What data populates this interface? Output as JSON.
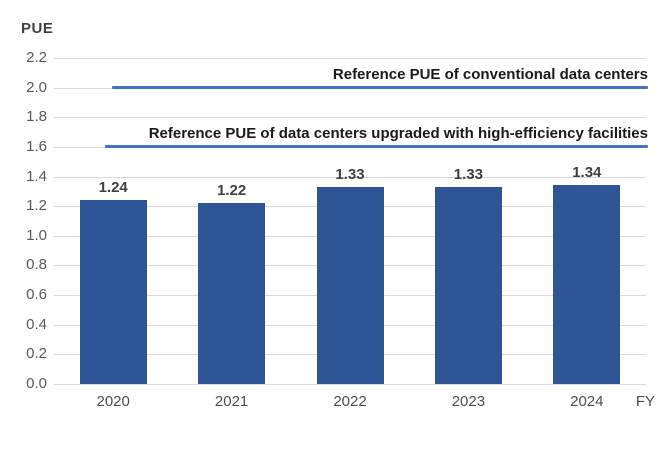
{
  "chart_data": {
    "type": "bar",
    "title": "",
    "ylabel": "PUE",
    "xlabel": "FY",
    "categories": [
      "2020",
      "2021",
      "2022",
      "2023",
      "2024"
    ],
    "values": [
      1.24,
      1.22,
      1.33,
      1.33,
      1.34
    ],
    "value_labels": [
      "1.24",
      "1.22",
      "1.33",
      "1.33",
      "1.34"
    ],
    "ylim": [
      0.0,
      2.2
    ],
    "ytick_step": 0.2,
    "ytick_labels": [
      "0.0",
      "0.2",
      "0.4",
      "0.6",
      "0.8",
      "1.0",
      "1.2",
      "1.4",
      "1.6",
      "1.8",
      "2.0",
      "2.2"
    ],
    "grid": true,
    "legend_position": "none",
    "reference_lines": [
      {
        "value": 2.0,
        "label": "Reference PUE of conventional data centers"
      },
      {
        "value": 1.6,
        "label": "Reference PUE of data centers upgraded with high-efficiency facilities"
      }
    ],
    "colors": {
      "bar": "#2E5596",
      "reference_line": "#4472C4",
      "gridline": "#D9D9D9",
      "tick_text": "#595959",
      "axis_title_text": "#404040",
      "value_label_text": "#404040",
      "reference_label_text": "#1A1A1A",
      "background": "#FFFFFF"
    }
  }
}
